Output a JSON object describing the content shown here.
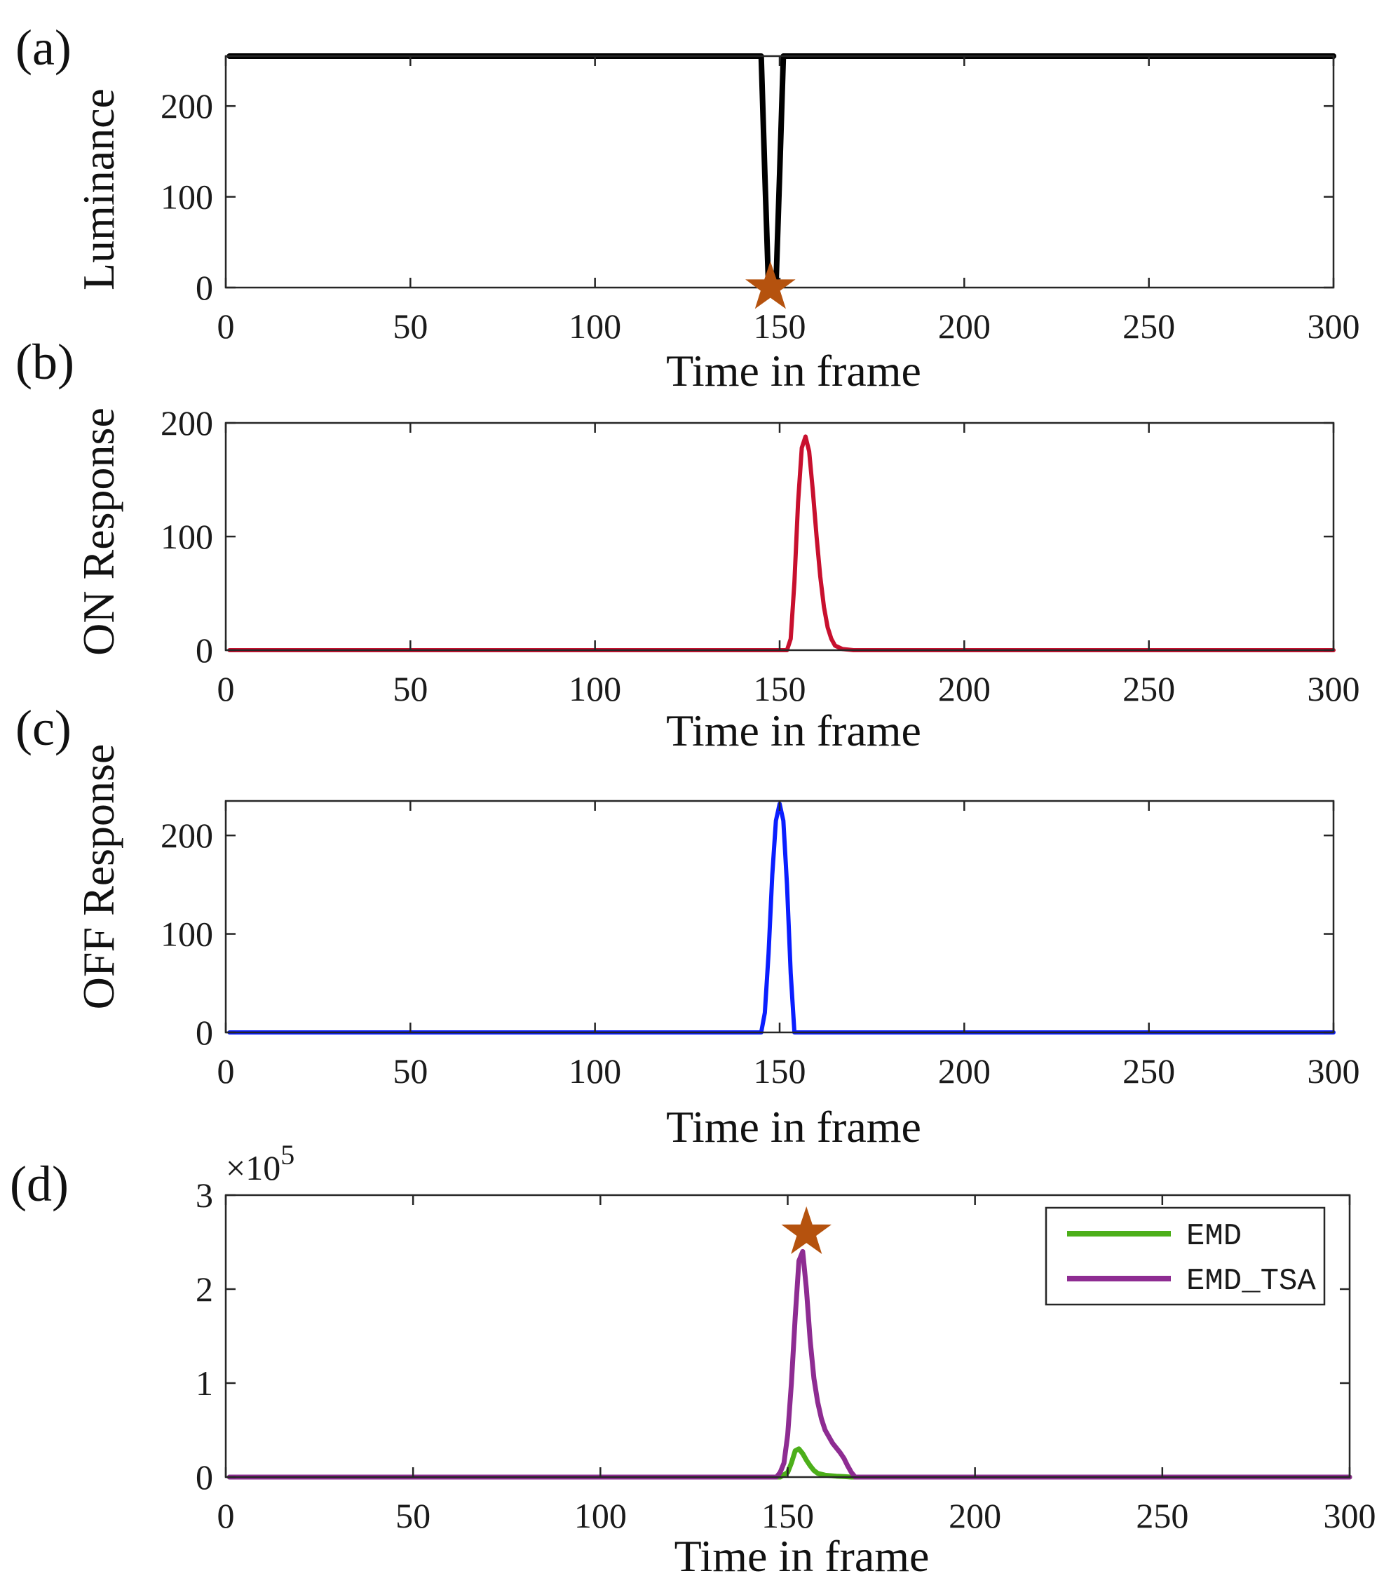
{
  "chart_data": [
    {
      "panel": "(a)",
      "type": "line",
      "title": "",
      "xlabel": "Time in frame",
      "ylabel": "Luminance",
      "xlim": [
        0,
        300
      ],
      "ylim": [
        0,
        255
      ],
      "xticks": [
        0,
        50,
        100,
        150,
        200,
        250,
        300
      ],
      "yticks": [
        0,
        100,
        200
      ],
      "grid": false,
      "series": [
        {
          "name": "Luminance",
          "color": "#000000",
          "x": [
            1,
            145,
            146,
            147,
            148,
            149,
            150,
            151,
            300
          ],
          "y": [
            255,
            255,
            125,
            0,
            0,
            0,
            125,
            255,
            255
          ]
        }
      ],
      "markers": [
        {
          "symbol": "star",
          "color": "#b5520e",
          "x": 147.5,
          "y": 0
        }
      ]
    },
    {
      "panel": "(b)",
      "type": "line",
      "title": "",
      "xlabel": "Time in frame",
      "ylabel": "ON Response",
      "xlim": [
        0,
        300
      ],
      "ylim": [
        0,
        200
      ],
      "xticks": [
        0,
        50,
        100,
        150,
        200,
        250,
        300
      ],
      "yticks": [
        0,
        100,
        200
      ],
      "grid": false,
      "series": [
        {
          "name": "ON Response",
          "color": "#c8102e",
          "x": [
            1,
            152,
            153,
            154,
            155,
            156,
            157,
            158,
            159,
            160,
            161,
            162,
            163,
            164,
            165,
            167,
            170,
            300
          ],
          "y": [
            0,
            0,
            10,
            60,
            130,
            178,
            188,
            175,
            140,
            100,
            65,
            38,
            20,
            10,
            4,
            1,
            0,
            0
          ]
        }
      ],
      "markers": []
    },
    {
      "panel": "(c)",
      "type": "line",
      "title": "",
      "xlabel": "Time in frame",
      "ylabel": "OFF Response",
      "xlim": [
        0,
        300
      ],
      "ylim": [
        0,
        235
      ],
      "xticks": [
        0,
        50,
        100,
        150,
        200,
        250,
        300
      ],
      "yticks": [
        0,
        100,
        200
      ],
      "grid": false,
      "series": [
        {
          "name": "OFF Response",
          "color": "#0a1eff",
          "x": [
            1,
            145,
            146,
            147,
            148,
            149,
            150,
            151,
            152,
            153,
            154,
            300
          ],
          "y": [
            0,
            0,
            20,
            80,
            160,
            215,
            232,
            215,
            150,
            60,
            0,
            0
          ]
        }
      ],
      "markers": []
    },
    {
      "panel": "(d)",
      "type": "line",
      "title": "",
      "xlabel": "Time in frame",
      "ylabel": "",
      "y_exponent_label": "×10",
      "y_exponent_power": "5",
      "xlim": [
        0,
        300
      ],
      "ylim": [
        0,
        3
      ],
      "xticks": [
        0,
        50,
        100,
        150,
        200,
        250,
        300
      ],
      "yticks": [
        0,
        1,
        2,
        3
      ],
      "grid": false,
      "legend": {
        "placement": "top-right",
        "entries": [
          "EMD",
          "EMD_TSA"
        ]
      },
      "series": [
        {
          "name": "EMD",
          "color": "#4caf1a",
          "x": [
            1,
            148,
            150,
            151,
            152,
            153,
            154,
            155,
            156,
            157,
            158,
            160,
            163,
            165,
            167,
            300
          ],
          "y": [
            0,
            0,
            0.05,
            0.15,
            0.28,
            0.3,
            0.25,
            0.18,
            0.12,
            0.07,
            0.04,
            0.02,
            0.01,
            0.005,
            0,
            0
          ]
        },
        {
          "name": "EMD_TSA",
          "color": "#8e2c92",
          "x": [
            1,
            147,
            148,
            149,
            150,
            151,
            152,
            153,
            154,
            155,
            156,
            157,
            158,
            159,
            160,
            162,
            164,
            165,
            166,
            167,
            168,
            300
          ],
          "y": [
            0,
            0,
            0.05,
            0.15,
            0.45,
            1.0,
            1.7,
            2.3,
            2.4,
            2.0,
            1.45,
            1.05,
            0.8,
            0.62,
            0.5,
            0.36,
            0.26,
            0.2,
            0.12,
            0.05,
            0,
            0
          ]
        }
      ],
      "markers": [
        {
          "symbol": "star",
          "color": "#b5520e",
          "x": 155,
          "y": 2.6
        }
      ]
    }
  ]
}
